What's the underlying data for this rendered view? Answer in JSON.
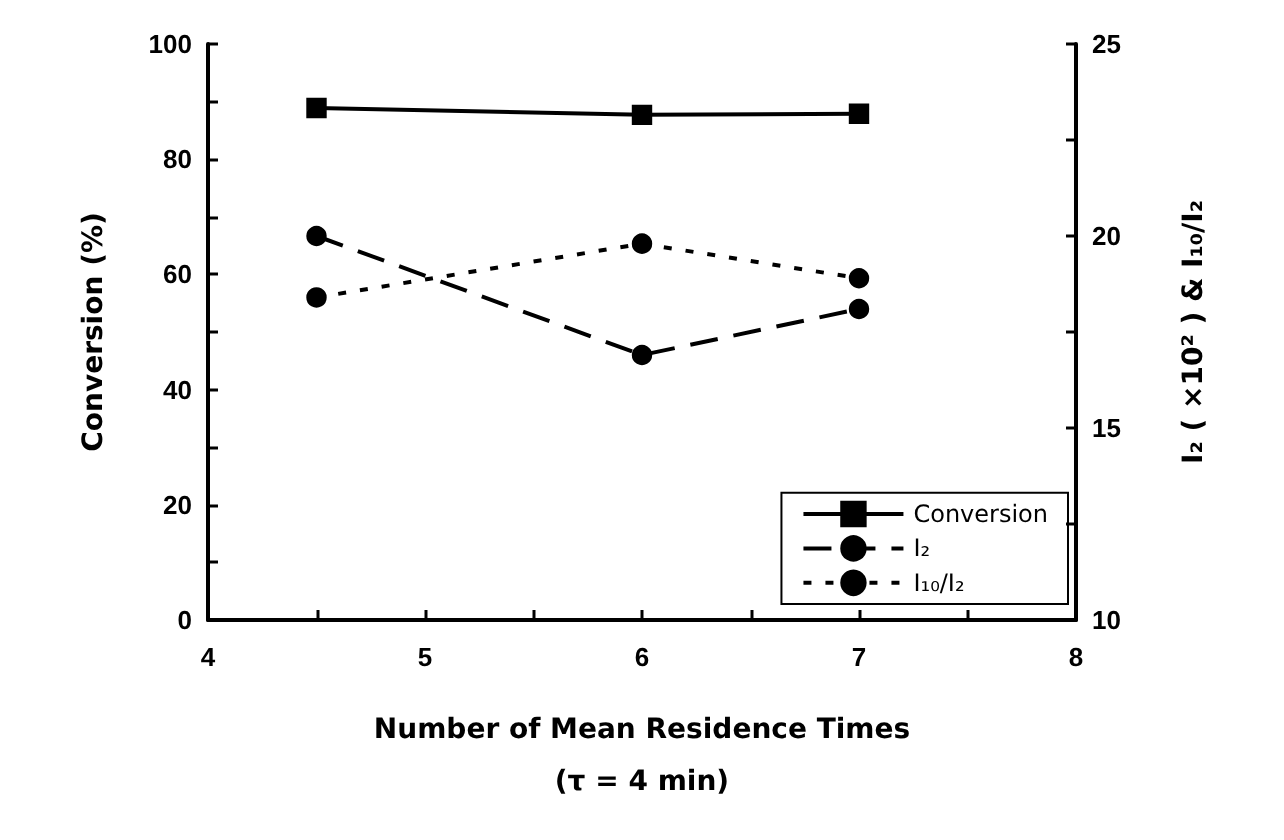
{
  "chart_data": {
    "type": "line",
    "xlabel": "Number of Mean Residence Times\n(τ = 4 min)",
    "ylabel": "Conversion (%)",
    "y2label": "I₂ ( ×10² ) & I₁₀/I₂",
    "x": [
      4.5,
      6,
      7
    ],
    "series": [
      {
        "name": "Conversion",
        "color": "#000000",
        "values": [
          88.9,
          87.7,
          87.9
        ],
        "marker": "square",
        "line_style": "solid"
      },
      {
        "name": "I₂",
        "color": "#000000",
        "values": [
          20.0,
          16.9,
          18.1
        ],
        "axis": "y2",
        "marker": "circle",
        "line_style": "dashed"
      },
      {
        "name": "I₁₀/I₂",
        "color": "#000000",
        "values": [
          18.4,
          19.8,
          18.9
        ],
        "axis": "y2",
        "marker": "circle",
        "line_style": "dotted"
      }
    ],
    "xlim": [
      4,
      8
    ],
    "xticks": [
      4,
      {
        "value": 4.5,
        "label": null
      },
      5,
      {
        "value": 5.5,
        "label": null
      },
      6,
      {
        "value": 6.5,
        "label": null
      },
      7,
      {
        "value": 7.5,
        "label": null
      },
      8
    ],
    "ylim": [
      0,
      100
    ],
    "yticks": [
      0,
      {
        "value": 10,
        "label": null
      },
      20,
      {
        "value": 30,
        "label": null
      },
      40,
      {
        "value": 50,
        "label": null
      },
      60,
      {
        "value": 70,
        "label": null
      },
      80,
      {
        "value": 90,
        "label": null
      },
      100
    ],
    "y2lim": [
      10,
      25
    ],
    "y2ticks": [
      10,
      {
        "value": 12.5,
        "label": null
      },
      15,
      {
        "value": 17.5,
        "label": null
      },
      20,
      {
        "value": 22.5,
        "label": null
      },
      25
    ],
    "grid": false,
    "legend": "bottom right"
  }
}
